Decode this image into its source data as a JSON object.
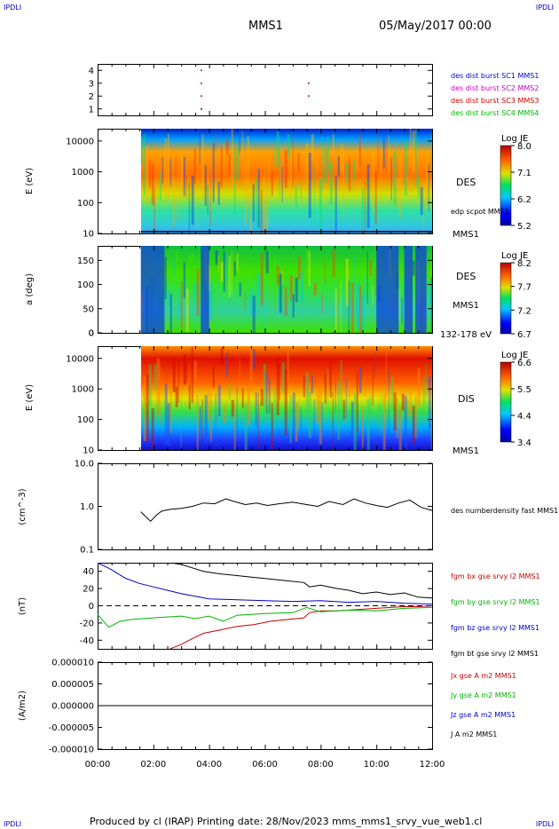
{
  "header": {
    "left_mark": "IPDLI",
    "right_mark": "IPDLI",
    "spacecraft": "MMS1",
    "datetime": "05/May/2017 00:00"
  },
  "footer": {
    "left_mark": "IPDLI",
    "right_mark": "IPDLI",
    "credit": "Produced by cl (IRAP)   Printing date: 28/Nov/2023   mms_mms1_srvy_vue_web1.cl"
  },
  "time_axis": {
    "ticks": [
      "00:00",
      "02:00",
      "04:00",
      "06:00",
      "08:00",
      "10:00",
      "12:00"
    ],
    "range_hours": [
      0,
      12
    ],
    "data_start_hour": 1.55
  },
  "colors": {
    "blue": "#0000c8",
    "magenta": "#c800c8",
    "red": "#c80000",
    "green": "#00b400",
    "black": "#000000"
  },
  "chart_data": [
    {
      "type": "scatter",
      "panel": "burst",
      "y_ticks": [
        "4",
        "3",
        "2",
        "1"
      ],
      "ylim": [
        0.5,
        4.5
      ],
      "legend": [
        {
          "label": "des dist burst SC1 MMS1",
          "color": "#0000c8"
        },
        {
          "label": "des dist burst SC2 MMS2",
          "color": "#c800c8"
        },
        {
          "label": "des dist burst SC3 MMS3",
          "color": "#c80000"
        },
        {
          "label": "des dist burst SC4 MMS4",
          "color": "#00b400"
        }
      ],
      "points": [
        {
          "x": 3.7,
          "y": 4,
          "color": "#c80000"
        },
        {
          "x": 3.7,
          "y": 3,
          "color": "#c80000"
        },
        {
          "x": 3.7,
          "y": 2,
          "color": "#c80000"
        },
        {
          "x": 3.7,
          "y": 1,
          "color": "#0000c8"
        },
        {
          "x": 7.55,
          "y": 3,
          "color": "#c80000"
        },
        {
          "x": 7.55,
          "y": 2,
          "color": "#c80000"
        }
      ]
    },
    {
      "type": "heatmap",
      "panel": "des_energy",
      "ylabel": "E (eV)",
      "y_ticks": [
        "10000",
        "1000",
        "100",
        "10"
      ],
      "log_range": [
        1,
        4.4
      ],
      "label": "DES",
      "sub_label": "MMS1",
      "overlay_label": "edp scpot MMS1",
      "colorbar": {
        "title": "Log JE",
        "ticks": [
          "8.0",
          "7.1",
          "6.2",
          "5.2"
        ]
      }
    },
    {
      "type": "heatmap",
      "panel": "des_pitch",
      "ylabel": "a (deg)",
      "y_ticks": [
        "150",
        "100",
        "50",
        "0"
      ],
      "ylim": [
        0,
        180
      ],
      "label": "DES",
      "sub_label": "MMS1",
      "energy_band": "132-178 eV",
      "colorbar": {
        "title": "Log JE",
        "ticks": [
          "8.2",
          "7.7",
          "7.2",
          "6.7"
        ]
      }
    },
    {
      "type": "heatmap",
      "panel": "dis_energy",
      "ylabel": "E (eV)",
      "y_ticks": [
        "10000",
        "1000",
        "100",
        "10"
      ],
      "log_range": [
        1,
        4.4
      ],
      "label": "DIS",
      "sub_label": "MMS1",
      "colorbar": {
        "title": "Log JE",
        "ticks": [
          "6.6",
          "5.5",
          "4.4",
          "3.4"
        ]
      }
    },
    {
      "type": "line",
      "panel": "density",
      "ylabel": "(cm^-3)",
      "y_ticks": [
        "10.0",
        "1.0",
        "0.1"
      ],
      "log_range": [
        -1,
        1
      ],
      "series": [
        {
          "name": "des numberdensity fast MMS1",
          "color": "#000000",
          "x": [
            1.55,
            1.9,
            2.1,
            2.3,
            2.6,
            3.0,
            3.4,
            3.8,
            4.2,
            4.6,
            4.9,
            5.3,
            5.7,
            6.1,
            6.5,
            7.0,
            7.5,
            7.9,
            8.3,
            8.8,
            9.2,
            9.6,
            10.0,
            10.4,
            10.8,
            11.2,
            11.6,
            12.0
          ],
          "y": [
            0.75,
            0.45,
            0.62,
            0.78,
            0.85,
            0.9,
            1.0,
            1.2,
            1.15,
            1.5,
            1.3,
            1.1,
            1.2,
            1.05,
            1.15,
            1.25,
            1.1,
            1.0,
            1.3,
            1.1,
            1.5,
            1.2,
            1.05,
            0.95,
            1.2,
            1.4,
            0.95,
            0.8
          ]
        }
      ]
    },
    {
      "type": "line",
      "panel": "fgm",
      "ylabel": "(nT)",
      "y_ticks": [
        "40",
        "20",
        "0",
        "-20",
        "-40"
      ],
      "ylim": [
        -50,
        50
      ],
      "series": [
        {
          "name": "fgm bx gse srvy l2 MMS1",
          "color": "#c80000",
          "x": [
            2.6,
            3.0,
            3.4,
            3.8,
            4.4,
            5.0,
            5.6,
            6.2,
            6.8,
            7.4,
            7.6,
            8.0,
            8.6,
            9.0,
            9.5,
            10.0,
            10.5,
            11.0,
            11.5,
            12.0
          ],
          "y": [
            -50,
            -45,
            -38,
            -32,
            -28,
            -24,
            -22,
            -18,
            -16,
            -14,
            -8,
            -6,
            -6,
            -5,
            -4,
            -3,
            -2,
            -1,
            -1,
            0
          ]
        },
        {
          "name": "fgm by gse srvy l2 MMS1",
          "color": "#00b400",
          "x": [
            0.0,
            0.4,
            0.8,
            1.2,
            1.6,
            2.0,
            2.5,
            3.0,
            3.5,
            4.0,
            4.5,
            5.0,
            6.0,
            7.0,
            7.5,
            8.0,
            9.0,
            10.0,
            11.0,
            12.0
          ],
          "y": [
            -10,
            -25,
            -18,
            -16,
            -15,
            -14,
            -13,
            -12,
            -15,
            -12,
            -18,
            -11,
            -9,
            -8,
            -2,
            -7,
            -5,
            -6,
            -3,
            -2
          ]
        },
        {
          "name": "fgm bz gse srvy l2 MMS1",
          "color": "#0000c8",
          "x": [
            0.0,
            0.5,
            1.0,
            1.5,
            2.0,
            2.5,
            3.0,
            3.5,
            4.0,
            5.0,
            6.0,
            7.0,
            8.0,
            9.0,
            10.0,
            11.0,
            12.0
          ],
          "y": [
            50,
            42,
            32,
            26,
            22,
            18,
            14,
            11,
            8,
            7,
            6,
            5,
            6,
            4,
            5,
            3,
            2
          ]
        },
        {
          "name": "fgm bt gse srvy l2 MMS1",
          "color": "#000000",
          "x": [
            2.6,
            3.0,
            3.4,
            3.8,
            4.4,
            5.0,
            5.6,
            6.2,
            6.8,
            7.4,
            7.6,
            8.0,
            8.6,
            9.0,
            9.5,
            10.0,
            10.5,
            11.0,
            11.5,
            12.0
          ],
          "y": [
            50,
            48,
            44,
            40,
            37,
            35,
            33,
            31,
            29,
            27,
            22,
            24,
            20,
            18,
            14,
            16,
            13,
            15,
            10,
            9
          ]
        }
      ]
    },
    {
      "type": "line",
      "panel": "current",
      "ylabel": "(A/m2)",
      "y_ticks": [
        "0.000010",
        "0.000005",
        "0.000000",
        "-0.000005",
        "-0.000010"
      ],
      "ylim": [
        -1e-05,
        1e-05
      ],
      "series": [
        {
          "name": "Jx gse A m2 MMS1",
          "color": "#c80000",
          "x": [
            0,
            12
          ],
          "y": [
            0,
            0
          ]
        },
        {
          "name": "Jy gse A m2 MMS1",
          "color": "#00b400",
          "x": [
            0,
            12
          ],
          "y": [
            0,
            0
          ]
        },
        {
          "name": "Jz gse A m2 MMS1",
          "color": "#0000c8",
          "x": [
            0,
            12
          ],
          "y": [
            0,
            0
          ]
        },
        {
          "name": "J A m2 MMS1",
          "color": "#000000",
          "x": [
            0,
            12
          ],
          "y": [
            0,
            0
          ]
        }
      ]
    }
  ]
}
